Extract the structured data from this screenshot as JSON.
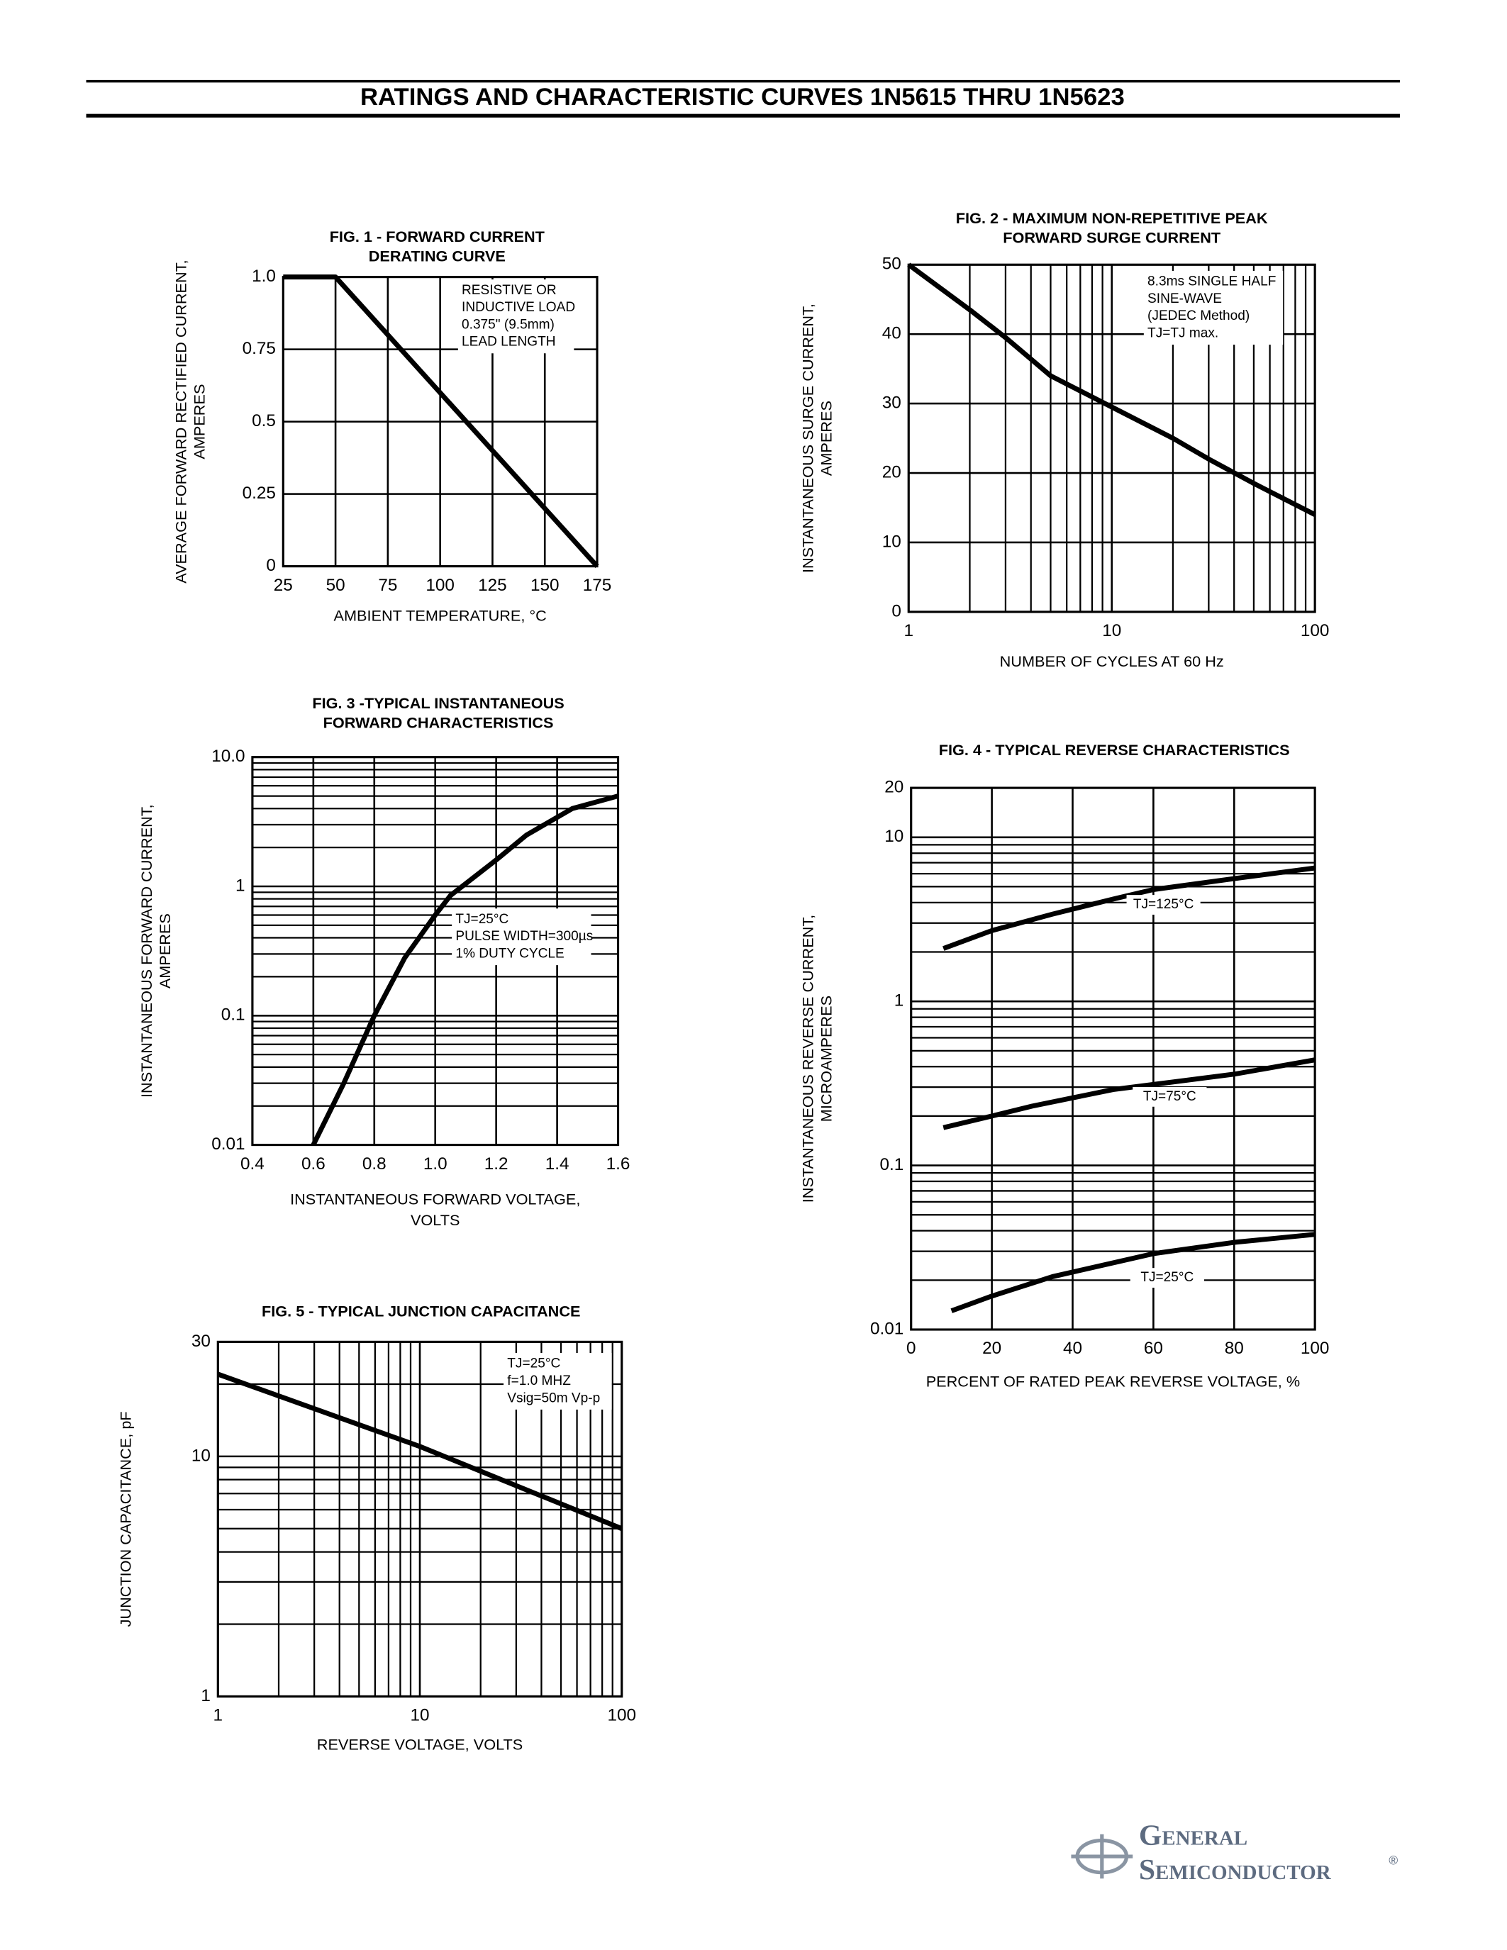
{
  "header": {
    "title": "RATINGS AND CHARACTERISTIC CURVES 1N5615 THRU 1N5623"
  },
  "chart_data": [
    {
      "type": "line",
      "title": [
        "FIG. 1 - FORWARD CURRENT",
        "DERATING CURVE"
      ],
      "xlabel": [
        "AMBIENT TEMPERATURE, °C"
      ],
      "ylabel": [
        "AVERAGE FORWARD RECTIFIED CURRENT,",
        "AMPERES"
      ],
      "xlim": [
        25,
        175
      ],
      "xticks": [
        25,
        50,
        75,
        100,
        125,
        150,
        175
      ],
      "ylim": [
        0,
        1
      ],
      "yticks": [
        0,
        0.25,
        0.5,
        0.75,
        {
          "value": 1,
          "label": "1.0"
        }
      ],
      "grid": true,
      "xlog": false,
      "ylog": false,
      "annotation": [
        "RESISTIVE OR",
        "INDUCTIVE LOAD",
        "0.375\" (9.5mm)",
        "LEAD LENGTH"
      ],
      "series": [
        {
          "color": "#000000",
          "x": [
            25,
            50,
            175
          ],
          "values": [
            1,
            1,
            0
          ]
        }
      ]
    },
    {
      "type": "line",
      "title": [
        "FIG. 2 - MAXIMUM NON-REPETITIVE PEAK",
        "FORWARD SURGE CURRENT"
      ],
      "xlabel": [
        "NUMBER OF CYCLES AT 60 Hz"
      ],
      "ylabel": [
        "INSTANTANEOUS SURGE CURRENT,",
        "AMPERES"
      ],
      "xlim": [
        1,
        100
      ],
      "xticks": [
        1,
        10,
        100
      ],
      "ylim": [
        0,
        50
      ],
      "yticks": [
        0,
        10,
        20,
        30,
        40,
        50
      ],
      "grid": true,
      "xlog": true,
      "ylog": false,
      "annotation": [
        "8.3ms SINGLE HALF",
        "SINE-WAVE",
        "(JEDEC Method)",
        "TJ=TJ max."
      ],
      "series": [
        {
          "color": "#000000",
          "x": [
            1,
            2,
            3,
            5,
            10,
            20,
            30,
            50,
            100
          ],
          "values": [
            50,
            43.5,
            39.5,
            34,
            29.5,
            25,
            22,
            18.5,
            14
          ]
        }
      ]
    },
    {
      "type": "line",
      "title": [
        "FIG. 3 -TYPICAL INSTANTANEOUS",
        "FORWARD CHARACTERISTICS"
      ],
      "xlabel": [
        "INSTANTANEOUS FORWARD VOLTAGE,",
        "VOLTS"
      ],
      "ylabel": [
        "INSTANTANEOUS FORWARD CURRENT,",
        "AMPERES"
      ],
      "xlim": [
        0.4,
        1.6
      ],
      "xticks": [
        0.4,
        0.6,
        0.8,
        {
          "value": 1,
          "label": "1.0"
        },
        1.2,
        1.4,
        1.6
      ],
      "ylim": [
        0.01,
        10
      ],
      "yticks": [
        0.01,
        0.1,
        1,
        {
          "value": 10,
          "label": "10.0"
        }
      ],
      "grid": true,
      "xlog": false,
      "ylog": true,
      "annotation": [
        "TJ=25°C",
        "PULSE WIDTH=300µs",
        "1% DUTY CYCLE"
      ],
      "series": [
        {
          "color": "#000000",
          "x": [
            0.6,
            0.7,
            0.8,
            0.9,
            1.0,
            1.05,
            1.2,
            1.3,
            1.45,
            1.6
          ],
          "values": [
            0.01,
            0.03,
            0.1,
            0.28,
            0.6,
            0.85,
            1.6,
            2.5,
            4,
            5
          ]
        }
      ]
    },
    {
      "type": "line",
      "title": [
        "FIG. 4 - TYPICAL REVERSE CHARACTERISTICS"
      ],
      "xlabel": [
        "PERCENT OF RATED PEAK REVERSE VOLTAGE, %"
      ],
      "ylabel": [
        "INSTANTANEOUS REVERSE CURRENT,",
        "MICROAMPERES"
      ],
      "xlim": [
        0,
        100
      ],
      "xticks": [
        0,
        20,
        40,
        60,
        80,
        100
      ],
      "ylim": [
        0.01,
        20
      ],
      "yticks": [
        0.01,
        0.1,
        1,
        10,
        20
      ],
      "grid": true,
      "xlog": false,
      "ylog": true,
      "series": [
        {
          "name": "TJ=125°C",
          "color": "#000000",
          "x": [
            8,
            20,
            35,
            50,
            60,
            80,
            100
          ],
          "values": [
            2.1,
            2.7,
            3.4,
            4.2,
            4.8,
            5.6,
            6.5
          ]
        },
        {
          "name": "TJ=75°C",
          "color": "#000000",
          "x": [
            8,
            20,
            30,
            50,
            80,
            100
          ],
          "values": [
            0.17,
            0.2,
            0.23,
            0.29,
            0.36,
            0.44
          ]
        },
        {
          "name": "TJ=25°C",
          "color": "#000000",
          "x": [
            10,
            20,
            35,
            60,
            80,
            100
          ],
          "values": [
            0.013,
            0.016,
            0.021,
            0.029,
            0.034,
            0.038
          ]
        }
      ]
    },
    {
      "type": "line",
      "title": [
        "FIG. 5 - TYPICAL JUNCTION CAPACITANCE"
      ],
      "xlabel": [
        "REVERSE VOLTAGE, VOLTS"
      ],
      "ylabel": [
        "JUNCTION CAPACITANCE, pF"
      ],
      "xlim": [
        1,
        100
      ],
      "xticks": [
        1,
        10,
        100
      ],
      "ylim": [
        1,
        30
      ],
      "yticks": [
        1,
        10,
        30
      ],
      "grid": true,
      "xlog": true,
      "ylog": true,
      "annotation": [
        "TJ=25°C",
        "f=1.0 MHZ",
        "Vsig=50m Vp-p"
      ],
      "series": [
        {
          "color": "#000000",
          "x": [
            1,
            10,
            100
          ],
          "values": [
            22,
            11,
            5
          ]
        }
      ]
    }
  ],
  "footer": {
    "brand": [
      "General",
      "Semiconductor"
    ],
    "mark": "®"
  }
}
